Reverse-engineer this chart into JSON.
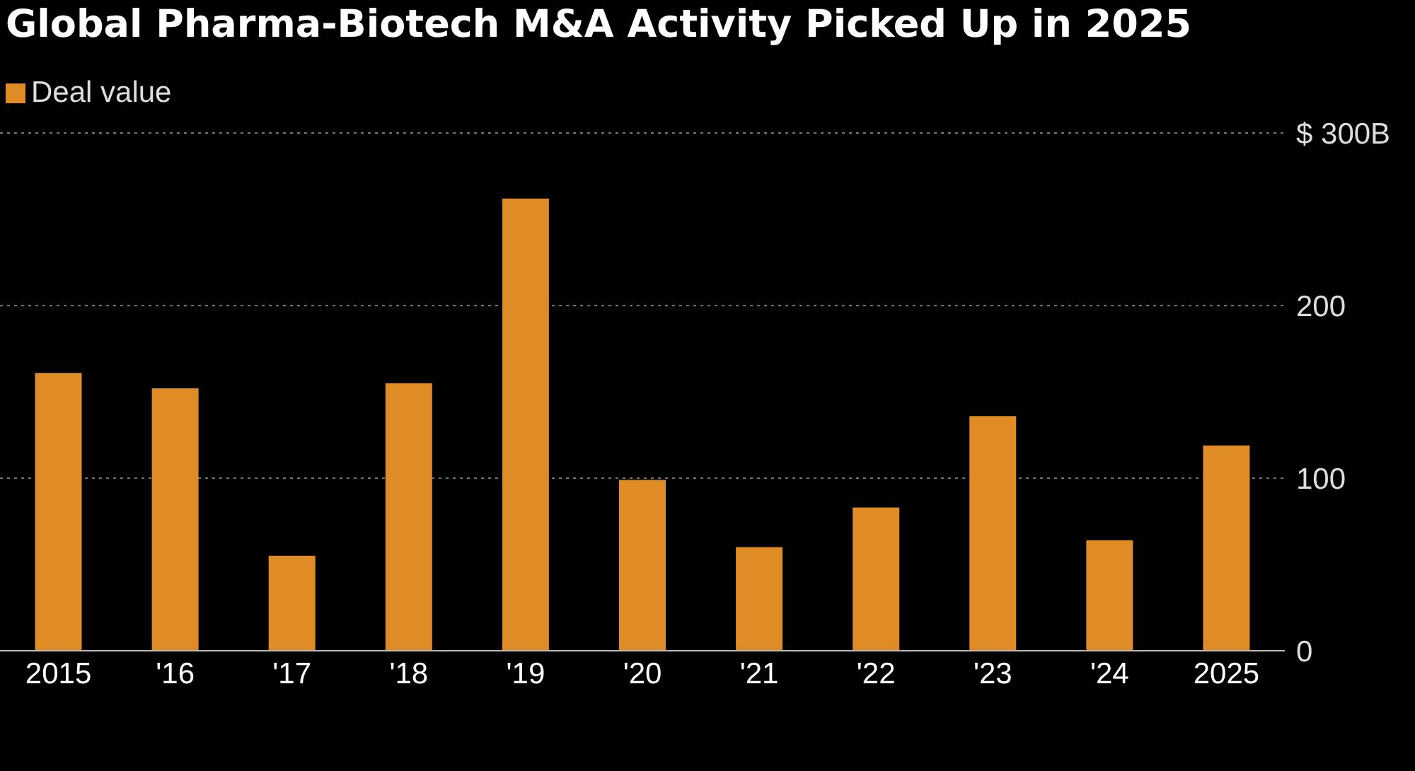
{
  "chart_data": {
    "type": "bar",
    "title": "Global Pharma-Biotech M&A Activity Picked Up in 2025",
    "categories": [
      "2015",
      "'16",
      "'17",
      "'18",
      "'19",
      "'20",
      "'21",
      "'22",
      "'23",
      "'24",
      "2025"
    ],
    "series": [
      {
        "name": "Deal value",
        "color": "#df8c26",
        "values": [
          161,
          152,
          55,
          155,
          262,
          99,
          60,
          83,
          136,
          64,
          119
        ]
      }
    ],
    "ylim": [
      0,
      300
    ],
    "yticks": [
      0,
      100,
      200,
      {
        "value": 300,
        "label": "$ 300B"
      }
    ],
    "grid": "y",
    "legend": "top left"
  }
}
